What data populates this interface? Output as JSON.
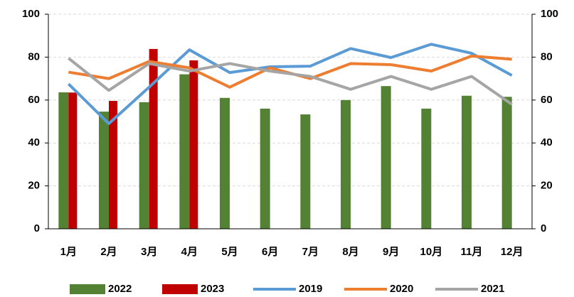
{
  "chart_data": {
    "type": "combo",
    "categories": [
      "1月",
      "2月",
      "3月",
      "4月",
      "5月",
      "6月",
      "7月",
      "8月",
      "9月",
      "10月",
      "11月",
      "12月"
    ],
    "series": [
      {
        "name": "2022",
        "type": "bar",
        "color": "#548235",
        "values": [
          63.6,
          54.6,
          59,
          72,
          61,
          56,
          53.3,
          60,
          66.5,
          56,
          62,
          61.5
        ]
      },
      {
        "name": "2023",
        "type": "bar",
        "color": "#c00000",
        "values": [
          63.5,
          59.6,
          83.8,
          78.5,
          null,
          null,
          null,
          null,
          null,
          null,
          null,
          null
        ]
      },
      {
        "name": "2019",
        "type": "line",
        "axis": "y2",
        "color": "#5b9bd5",
        "values": [
          67.5,
          49,
          66,
          83.4,
          72.8,
          75.5,
          75.8,
          84,
          79.8,
          86,
          81.8,
          71.5
        ]
      },
      {
        "name": "2020",
        "type": "line",
        "axis": "y2",
        "color": "#ed7d31",
        "values": [
          73,
          70,
          78,
          75,
          66,
          75,
          70,
          77,
          76.5,
          73.5,
          80.5,
          79
        ]
      },
      {
        "name": "2021",
        "type": "line",
        "axis": "y2",
        "color": "#a5a5a5",
        "values": [
          79.5,
          64.5,
          77,
          73.5,
          77,
          73.5,
          71,
          65,
          71,
          65,
          71,
          58
        ]
      }
    ],
    "ylim": [
      0,
      100
    ],
    "yticks": [
      0,
      20,
      40,
      60,
      80,
      100
    ],
    "y2lim": [
      0,
      100
    ],
    "y2ticks": [
      0,
      20,
      40,
      60,
      80,
      100
    ],
    "grid": true,
    "legend": "bottom"
  }
}
